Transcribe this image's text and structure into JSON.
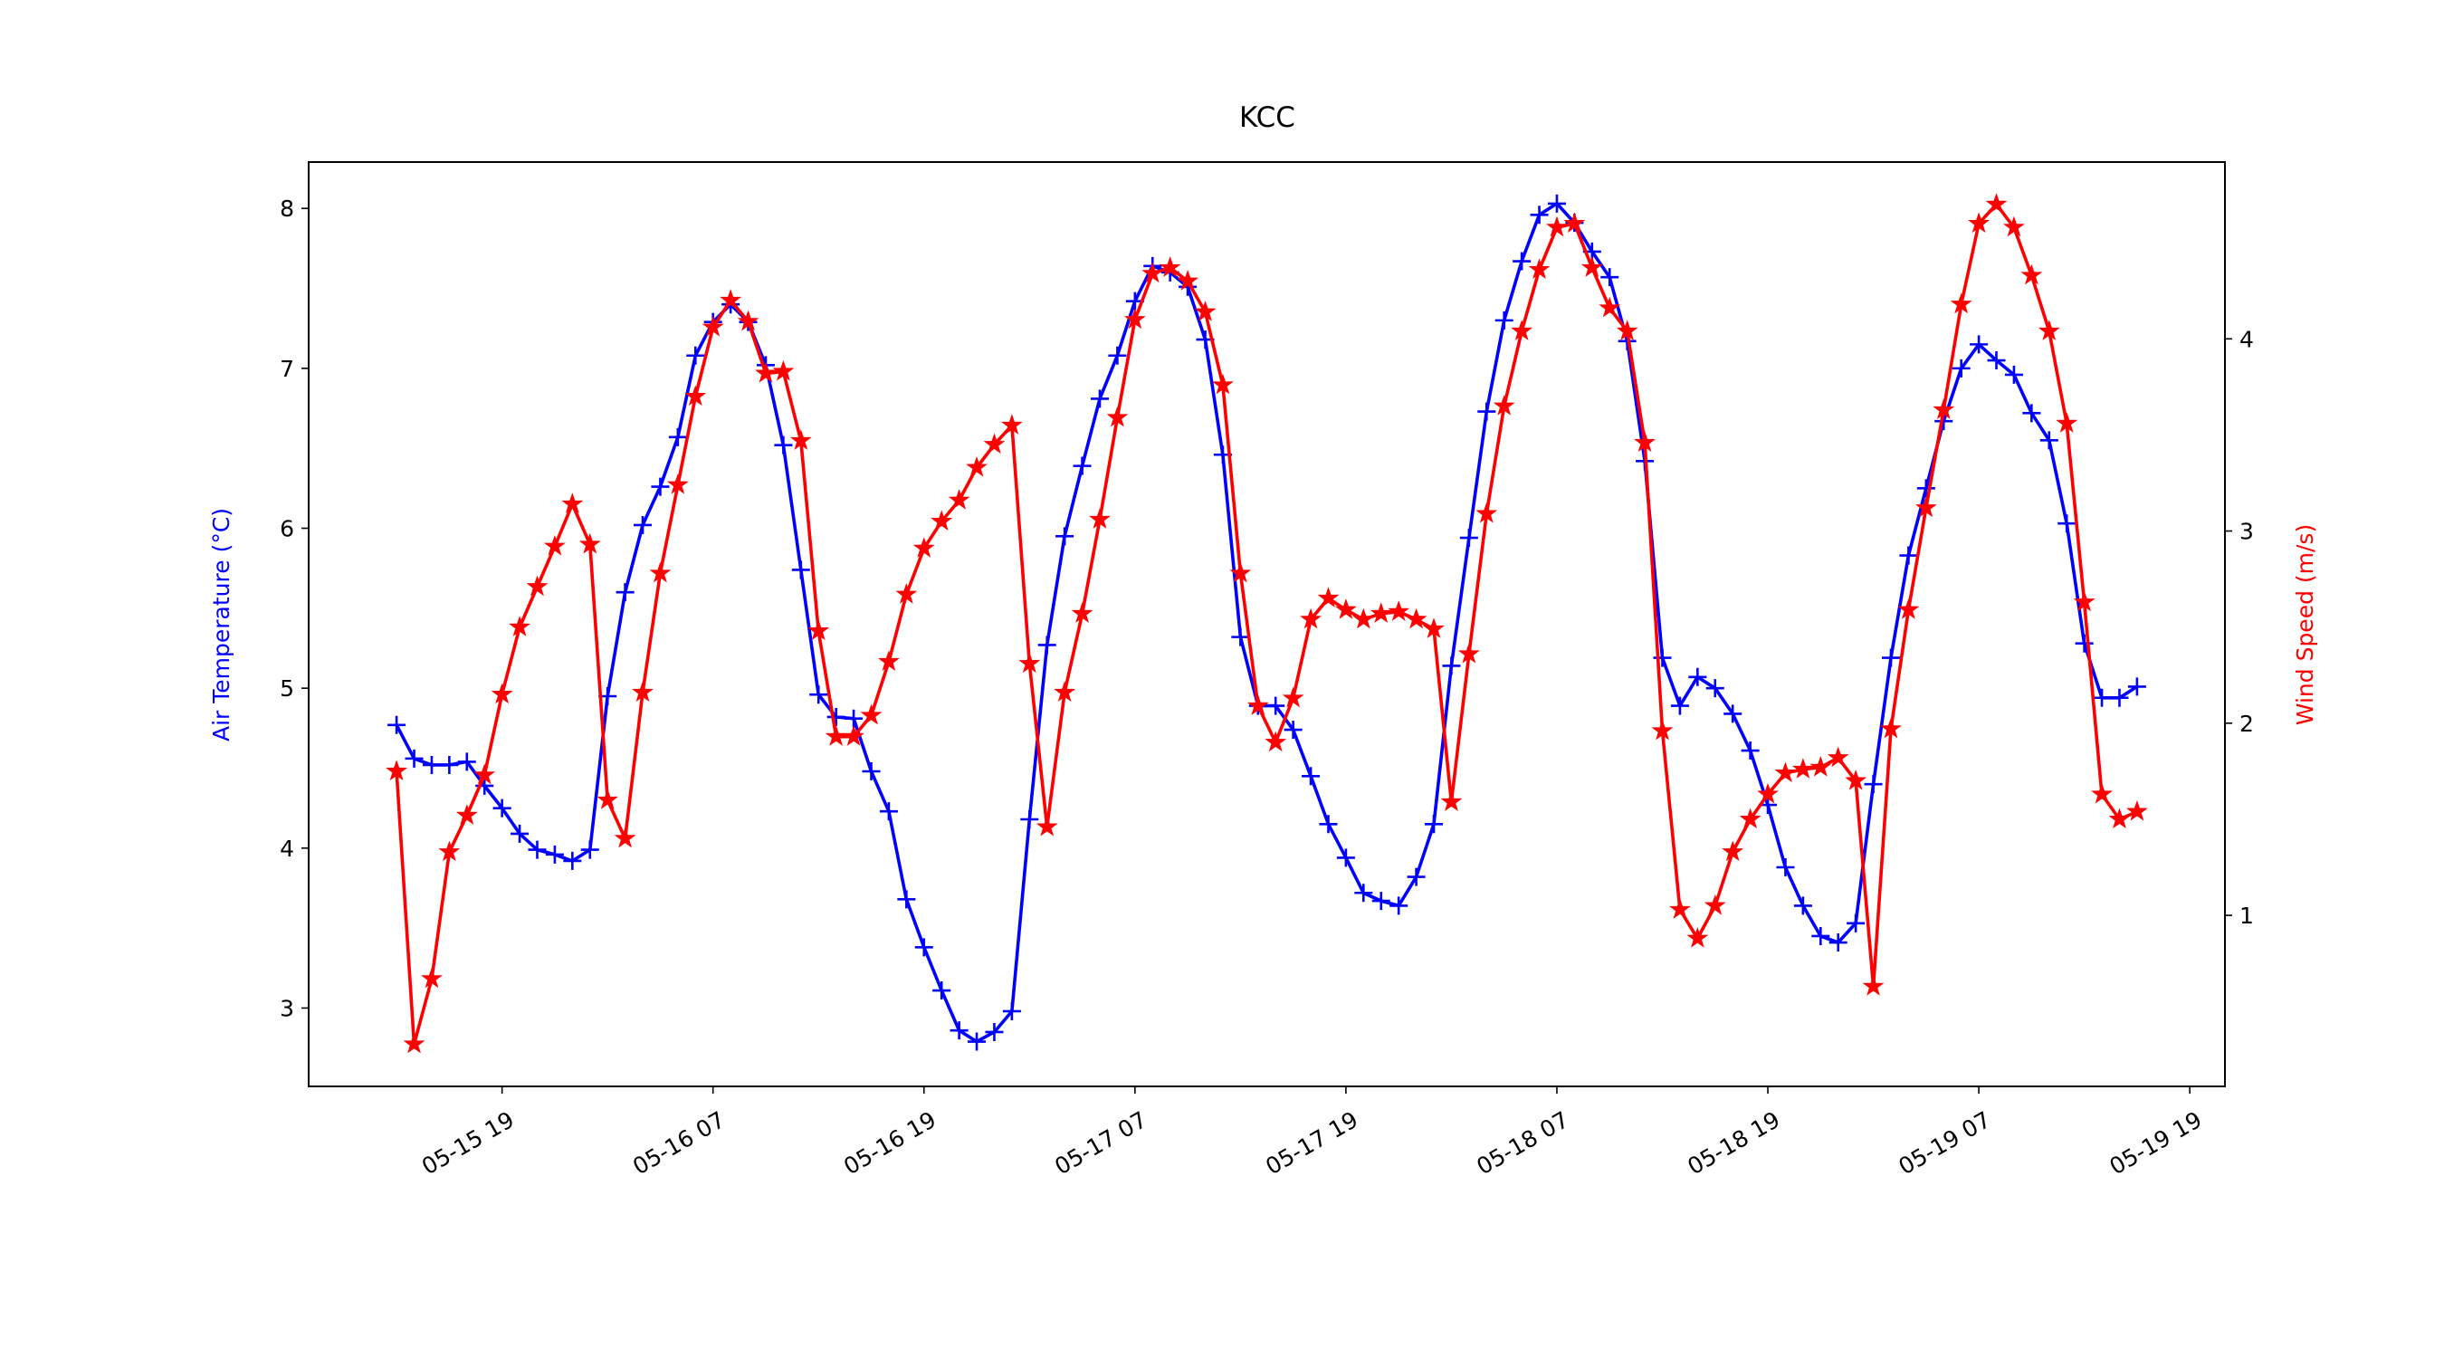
{
  "chart_data": {
    "type": "line",
    "title": "KCC",
    "ylabel": "Air Temperature (°C)",
    "y2label": "Wind Speed (m/s)",
    "x": [
      "05-15 13",
      "05-15 14",
      "05-15 15",
      "05-15 16",
      "05-15 17",
      "05-15 18",
      "05-15 19",
      "05-15 20",
      "05-15 21",
      "05-15 22",
      "05-15 23",
      "05-16 00",
      "05-16 01",
      "05-16 02",
      "05-16 03",
      "05-16 04",
      "05-16 05",
      "05-16 06",
      "05-16 07",
      "05-16 08",
      "05-16 09",
      "05-16 10",
      "05-16 11",
      "05-16 12",
      "05-16 13",
      "05-16 14",
      "05-16 15",
      "05-16 16",
      "05-16 17",
      "05-16 18",
      "05-16 19",
      "05-16 20",
      "05-16 21",
      "05-16 22",
      "05-16 23",
      "05-17 00",
      "05-17 01",
      "05-17 02",
      "05-17 03",
      "05-17 04",
      "05-17 05",
      "05-17 06",
      "05-17 07",
      "05-17 08",
      "05-17 09",
      "05-17 10",
      "05-17 11",
      "05-17 12",
      "05-17 13",
      "05-17 14",
      "05-17 15",
      "05-17 16",
      "05-17 17",
      "05-17 18",
      "05-17 19",
      "05-17 20",
      "05-17 21",
      "05-17 22",
      "05-17 23",
      "05-18 00",
      "05-18 01",
      "05-18 02",
      "05-18 03",
      "05-18 04",
      "05-18 05",
      "05-18 06",
      "05-18 07",
      "05-18 08",
      "05-18 09",
      "05-18 10",
      "05-18 11",
      "05-18 12",
      "05-18 13",
      "05-18 14",
      "05-18 15",
      "05-18 16",
      "05-18 17",
      "05-18 18",
      "05-18 19",
      "05-18 20",
      "05-18 21",
      "05-18 22",
      "05-18 23",
      "05-19 00",
      "05-19 01",
      "05-19 02",
      "05-19 03",
      "05-19 04",
      "05-19 05",
      "05-19 06",
      "05-19 07",
      "05-19 08",
      "05-19 09",
      "05-19 10",
      "05-19 11",
      "05-19 12",
      "05-19 13",
      "05-19 14",
      "05-19 15",
      "05-19 16"
    ],
    "series": [
      {
        "color": "#0000ff",
        "marker": "+",
        "axis": "y",
        "values": [
          4.77,
          4.56,
          4.52,
          4.52,
          4.54,
          4.39,
          4.25,
          4.09,
          3.99,
          3.96,
          3.92,
          3.99,
          4.95,
          5.6,
          6.02,
          6.26,
          6.57,
          7.08,
          7.29,
          7.4,
          7.29,
          7.02,
          6.52,
          5.74,
          4.96,
          4.82,
          4.81,
          4.48,
          4.23,
          3.68,
          3.38,
          3.11,
          2.86,
          2.79,
          2.85,
          2.98,
          4.18,
          5.27,
          5.95,
          6.39,
          6.81,
          7.08,
          7.42,
          7.64,
          7.6,
          7.51,
          7.18,
          6.46,
          5.32,
          4.89,
          4.89,
          4.74,
          4.45,
          4.15,
          3.94,
          3.72,
          3.67,
          3.64,
          3.82,
          4.15,
          5.14,
          5.94,
          6.73,
          7.3,
          7.67,
          7.96,
          8.03,
          7.91,
          7.73,
          7.57,
          7.17,
          6.42,
          5.19,
          4.89,
          5.07,
          5.0,
          4.84,
          4.61,
          4.27,
          3.88,
          3.64,
          3.45,
          3.41,
          3.53,
          4.4,
          5.19,
          5.83,
          6.25,
          6.67,
          7.0,
          7.15,
          7.05,
          6.96,
          6.72,
          6.55,
          6.03,
          5.28,
          4.94,
          4.94,
          5.01
        ]
      },
      {
        "color": "#ff0000",
        "marker": "*",
        "axis": "y2",
        "values": [
          1.75,
          0.33,
          0.67,
          1.33,
          1.52,
          1.73,
          2.15,
          2.5,
          2.71,
          2.92,
          3.14,
          2.93,
          1.6,
          1.4,
          2.16,
          2.78,
          3.24,
          3.7,
          4.06,
          4.2,
          4.09,
          3.82,
          3.83,
          3.47,
          2.48,
          1.93,
          1.93,
          2.04,
          2.32,
          2.67,
          2.91,
          3.05,
          3.16,
          3.33,
          3.45,
          3.55,
          2.31,
          1.46,
          2.16,
          2.57,
          3.06,
          3.59,
          4.1,
          4.34,
          4.37,
          4.3,
          4.14,
          3.76,
          2.78,
          2.09,
          1.9,
          2.13,
          2.54,
          2.65,
          2.59,
          2.54,
          2.57,
          2.58,
          2.54,
          2.49,
          1.59,
          2.36,
          3.09,
          3.65,
          4.04,
          4.36,
          4.58,
          4.6,
          4.37,
          4.16,
          4.04,
          3.46,
          1.96,
          1.03,
          0.88,
          1.05,
          1.33,
          1.5,
          1.63,
          1.74,
          1.76,
          1.77,
          1.82,
          1.7,
          0.63,
          1.97,
          2.59,
          3.12,
          3.63,
          4.18,
          4.6,
          4.7,
          4.58,
          4.33,
          4.04,
          3.56,
          2.63,
          1.63,
          1.5,
          1.54
        ]
      }
    ],
    "xlim": [
      "05-15 08",
      "05-19 21"
    ],
    "xticks": [
      "05-15 19",
      "05-16 07",
      "05-16 19",
      "05-17 07",
      "05-17 19",
      "05-18 07",
      "05-18 19",
      "05-19 07",
      "05-19 19"
    ],
    "ylim": [
      2.51,
      8.29
    ],
    "yticks": [
      3,
      4,
      5,
      6,
      7,
      8
    ],
    "y2lim": [
      0.11,
      4.92
    ],
    "y2ticks": [
      1,
      2,
      3,
      4
    ]
  }
}
